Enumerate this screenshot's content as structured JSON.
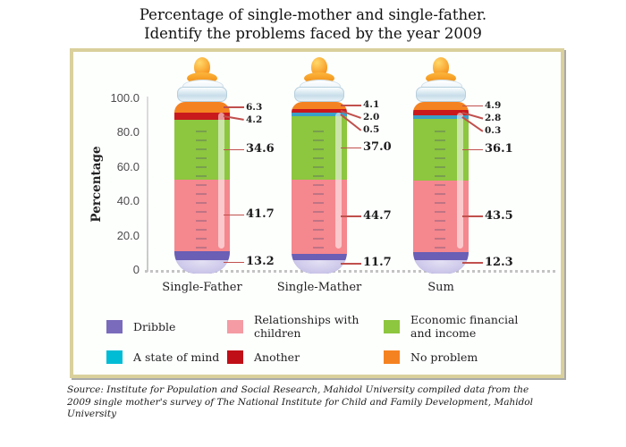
{
  "title": {
    "line1": "Percentage of single-mother and single-father.",
    "line2": "Identify the problems faced by the year 2009"
  },
  "y_axis": {
    "label": "Percentage",
    "ticks": [
      "100.0",
      "80.0",
      "60.0",
      "40.0",
      "20.0",
      "0"
    ]
  },
  "chart_data": {
    "type": "bar",
    "stacked": true,
    "title": "Percentage of single-mother and single-father. Identify the problems faced by the year 2009",
    "ylabel": "Percentage",
    "ylim": [
      0,
      100
    ],
    "categories": [
      "Single-Father",
      "Single-Mather",
      "Sum"
    ],
    "series": [
      {
        "name": "No problem",
        "color": "#f58220",
        "values": [
          6.3,
          4.1,
          4.9
        ],
        "labels": [
          "6.3",
          "4.1",
          "4.9"
        ]
      },
      {
        "name": "Another",
        "color": "#c9191d",
        "values": [
          4.2,
          2.0,
          2.8
        ],
        "labels": [
          "4.2",
          "2.0",
          "2.8"
        ]
      },
      {
        "name": "A state of mind",
        "color": "#3aa0c8",
        "values": [
          null,
          0.5,
          0.3
        ],
        "labels": [
          null,
          "0.5",
          "0.3"
        ]
      },
      {
        "name": "Economic financial and income",
        "color": "#8dc63f",
        "values": [
          34.6,
          37.0,
          36.1
        ],
        "labels": [
          "34.6",
          "37.0",
          "36.1"
        ]
      },
      {
        "name": "Relationships with children",
        "color": "#f5878e",
        "values": [
          41.7,
          44.7,
          43.5
        ],
        "labels": [
          "41.7",
          "44.7",
          "43.5"
        ]
      },
      {
        "name": "Dribble",
        "color": "#6a5eb5",
        "values": [
          13.2,
          11.7,
          12.3
        ],
        "labels": [
          "13.2",
          "11.7",
          "12.3"
        ]
      }
    ]
  },
  "legend": {
    "items": [
      {
        "label": "Dribble",
        "color": "#7a6bbc"
      },
      {
        "label": "A state of mind",
        "color": "#00bcd4"
      },
      {
        "label": "Relationships with children",
        "color": "#f49ba3"
      },
      {
        "label": "Another",
        "color": "#c00f17"
      },
      {
        "label": "Economic financial and income",
        "color": "#8dc63f"
      },
      {
        "label": "No problem",
        "color": "#f58220"
      }
    ]
  },
  "source": {
    "lines": [
      "Source: Institute for Population and Social Research, Mahidol University compiled data from the",
      "2009 single mother's survey of The National Institute for Child and Family Development, Mahidol",
      "University"
    ]
  }
}
